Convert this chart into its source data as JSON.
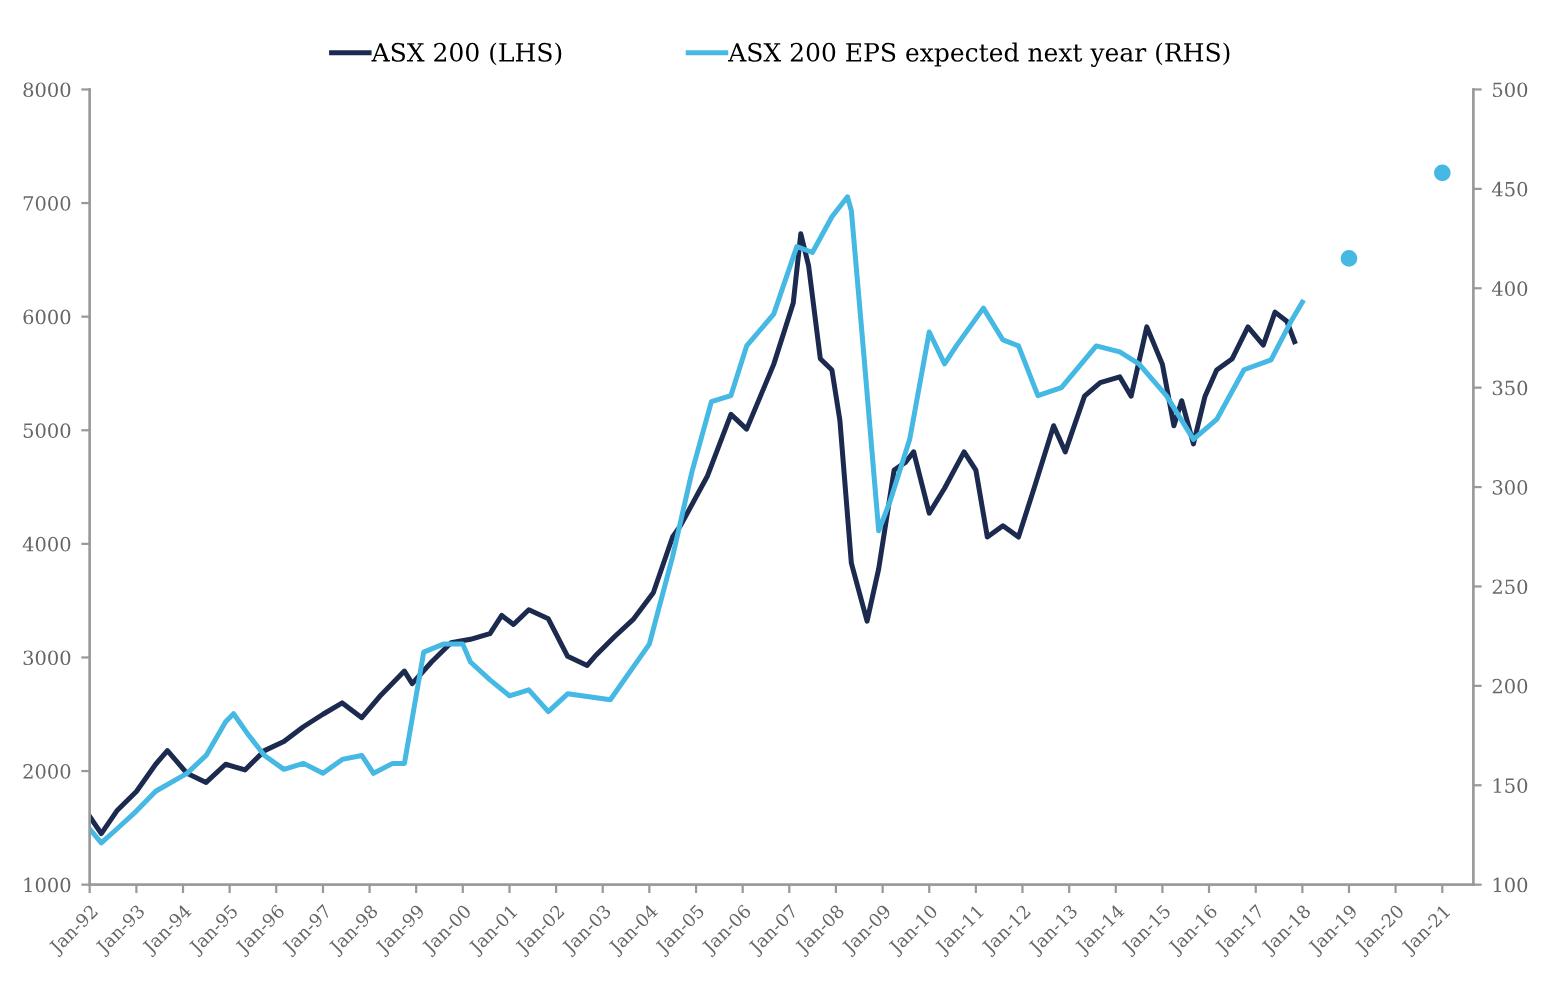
{
  "chart_data": {
    "type": "line",
    "xlim": [
      "1992-01",
      "2021-09"
    ],
    "xticks": [
      {
        "value": "1992-01",
        "label": "Jan-92"
      },
      {
        "value": "1993-01",
        "label": "Jan-93"
      },
      {
        "value": "1994-01",
        "label": "Jan-94"
      },
      {
        "value": "1995-01",
        "label": "Jan-95"
      },
      {
        "value": "1996-01",
        "label": "Jan-96"
      },
      {
        "value": "1997-01",
        "label": "Jan-97"
      },
      {
        "value": "1998-01",
        "label": "Jan-98"
      },
      {
        "value": "1999-01",
        "label": "Jan-99"
      },
      {
        "value": "2000-01",
        "label": "Jan-00"
      },
      {
        "value": "2001-01",
        "label": "Jan-01"
      },
      {
        "value": "2002-01",
        "label": "Jan-02"
      },
      {
        "value": "2003-01",
        "label": "Jan-03"
      },
      {
        "value": "2004-01",
        "label": "Jan-04"
      },
      {
        "value": "2005-01",
        "label": "Jan-05"
      },
      {
        "value": "2006-01",
        "label": "Jan-06"
      },
      {
        "value": "2007-01",
        "label": "Jan-07"
      },
      {
        "value": "2008-01",
        "label": "Jan-08"
      },
      {
        "value": "2009-01",
        "label": "Jan-09"
      },
      {
        "value": "2010-01",
        "label": "Jan-10"
      },
      {
        "value": "2011-01",
        "label": "Jan-11"
      },
      {
        "value": "2012-01",
        "label": "Jan-12"
      },
      {
        "value": "2013-01",
        "label": "Jan-13"
      },
      {
        "value": "2014-01",
        "label": "Jan-14"
      },
      {
        "value": "2015-01",
        "label": "Jan-15"
      },
      {
        "value": "2016-01",
        "label": "Jan-16"
      },
      {
        "value": "2017-01",
        "label": "Jan-17"
      },
      {
        "value": "2018-01",
        "label": "Jan-18"
      },
      {
        "value": "2019-01",
        "label": "Jan-19"
      },
      {
        "value": "2020-01",
        "label": "Jan-20"
      },
      {
        "value": "2021-01",
        "label": "Jan-21"
      }
    ],
    "ylim": [
      1000,
      8000
    ],
    "yticks": [
      1000,
      2000,
      3000,
      4000,
      5000,
      6000,
      7000,
      8000
    ],
    "y2lim": [
      100,
      500
    ],
    "y2ticks": [
      100,
      150,
      200,
      250,
      300,
      350,
      400,
      450,
      500
    ],
    "grid": false,
    "legend": "top",
    "line_style": "solid",
    "series": [
      {
        "name": "ASX 200 (LHS)",
        "color": "#1b2a4e",
        "x": [
          "1992-01",
          "1992-04",
          "1992-08",
          "1993-01",
          "1993-06",
          "1993-09",
          "1994-02",
          "1994-07",
          "1994-12",
          "1995-05",
          "1995-10",
          "1996-03",
          "1996-08",
          "1997-01",
          "1997-06",
          "1997-11",
          "1998-04",
          "1998-10",
          "1998-12",
          "1999-05",
          "1999-10",
          "2000-03",
          "2000-08",
          "2000-11",
          "2001-02",
          "2001-06",
          "2001-11",
          "2002-04",
          "2002-09",
          "2002-11",
          "2003-04",
          "2003-09",
          "2004-02",
          "2004-07",
          "2004-09",
          "2005-04",
          "2005-10",
          "2006-02",
          "2006-09",
          "2007-02",
          "2007-04",
          "2007-06",
          "2007-09",
          "2007-12",
          "2008-02",
          "2008-05",
          "2008-09",
          "2008-12",
          "2009-04",
          "2009-07",
          "2009-09",
          "2010-01",
          "2010-05",
          "2010-10",
          "2011-01",
          "2011-04",
          "2011-08",
          "2011-12",
          "2012-04",
          "2012-09",
          "2012-12",
          "2013-05",
          "2013-09",
          "2014-02",
          "2014-05",
          "2014-09",
          "2015-01",
          "2015-04",
          "2015-06",
          "2015-09",
          "2015-12",
          "2016-03",
          "2016-07",
          "2016-11",
          "2017-03",
          "2017-06",
          "2017-09",
          "2017-11"
        ],
        "values": [
          1600,
          1450,
          1650,
          1820,
          2060,
          2180,
          1980,
          1900,
          2060,
          2010,
          2180,
          2260,
          2390,
          2500,
          2600,
          2470,
          2670,
          2880,
          2770,
          2960,
          3130,
          3160,
          3210,
          3370,
          3290,
          3420,
          3340,
          3010,
          2930,
          3010,
          3180,
          3340,
          3570,
          4060,
          4160,
          4600,
          5140,
          5010,
          5580,
          6120,
          6730,
          6450,
          5630,
          5530,
          5090,
          3830,
          3320,
          3780,
          4650,
          4720,
          4810,
          4270,
          4490,
          4810,
          4650,
          4060,
          4160,
          4060,
          4490,
          5040,
          4810,
          5300,
          5420,
          5470,
          5300,
          5910,
          5580,
          5040,
          5260,
          4880,
          5300,
          5530,
          5630,
          5910,
          5750,
          6040,
          5960,
          5780
        ]
      },
      {
        "name": "ASX 200 EPS expected next year (RHS)",
        "color": "#45b8e3",
        "axis": "y2",
        "x": [
          "1992-01",
          "1992-04",
          "1992-08",
          "1993-01",
          "1993-06",
          "1994-02",
          "1994-07",
          "1994-12",
          "1995-02",
          "1995-06",
          "1995-10",
          "1996-03",
          "1996-08",
          "1997-01",
          "1997-06",
          "1997-11",
          "1998-02",
          "1998-07",
          "1998-10",
          "1999-03",
          "1999-08",
          "2000-01",
          "2000-03",
          "2000-08",
          "2001-01",
          "2001-06",
          "2001-11",
          "2002-04",
          "2003-03",
          "2004-01",
          "2004-07",
          "2004-12",
          "2005-05",
          "2005-10",
          "2006-02",
          "2006-09",
          "2007-03",
          "2007-07",
          "2007-12",
          "2008-04",
          "2008-05",
          "2008-08",
          "2008-12",
          "2009-03",
          "2009-08",
          "2010-01",
          "2010-05",
          "2010-08",
          "2011-03",
          "2011-08",
          "2011-12",
          "2012-05",
          "2012-11",
          "2013-08",
          "2014-02",
          "2014-07",
          "2015-02",
          "2015-09",
          "2016-03",
          "2016-10",
          "2017-05",
          "2017-10",
          "2018-01"
        ],
        "values": [
          128,
          121,
          128,
          137,
          147,
          156,
          165,
          182,
          186,
          175,
          165,
          158,
          161,
          156,
          163,
          165,
          156,
          161,
          161,
          217,
          221,
          221,
          212,
          203,
          195,
          198,
          187,
          196,
          193,
          221,
          265,
          308,
          343,
          346,
          371,
          387,
          421,
          418,
          436,
          446,
          439,
          371,
          278,
          293,
          324,
          378,
          362,
          371,
          390,
          374,
          371,
          346,
          350,
          371,
          368,
          362,
          346,
          324,
          334,
          359,
          364,
          383,
          393
        ]
      },
      {
        "type": "scatter",
        "color": "#45b8e3",
        "axis": "y2",
        "marker": "circle",
        "x": [
          "2019-01",
          "2021-01"
        ],
        "values": [
          415,
          458
        ]
      }
    ]
  }
}
